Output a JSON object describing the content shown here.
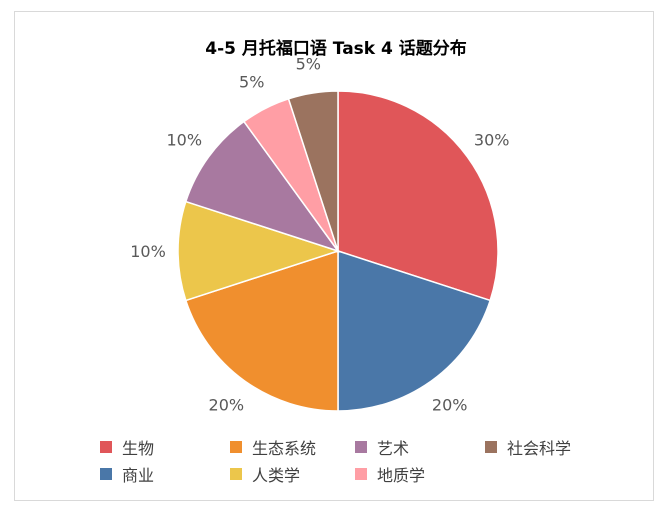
{
  "chart_data": {
    "type": "pie",
    "title": "4-5 月托福口语 Task 4 话题分布",
    "slices": [
      {
        "label": "生物",
        "value": 30,
        "display": "30%",
        "color": "#e05659"
      },
      {
        "label": "商业",
        "value": 20,
        "display": "20%",
        "color": "#4a77a8"
      },
      {
        "label": "生态系统",
        "value": 20,
        "display": "20%",
        "color": "#f08f2e"
      },
      {
        "label": "人类学",
        "value": 10,
        "display": "10%",
        "color": "#ecc64b"
      },
      {
        "label": "艺术",
        "value": 10,
        "display": "10%",
        "color": "#a879a0"
      },
      {
        "label": "地质学",
        "value": 5,
        "display": "5%",
        "color": "#ff9ea5"
      },
      {
        "label": "社会科学",
        "value": 5,
        "display": "5%",
        "color": "#9b735f"
      }
    ],
    "legend_position": "bottom",
    "legend": [
      "生物",
      "生态系统",
      "艺术",
      "社会科学",
      "商业",
      "人类学",
      "地质学"
    ]
  }
}
